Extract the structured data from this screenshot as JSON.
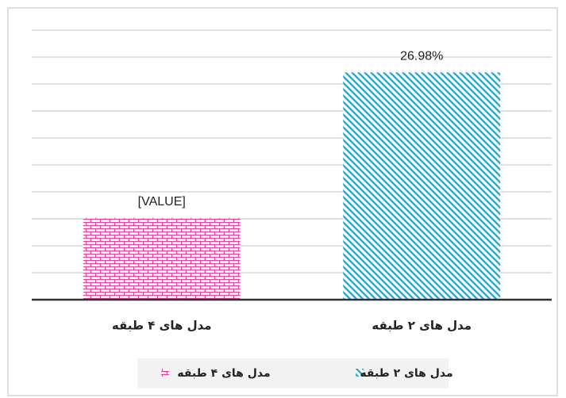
{
  "chart_data": {
    "type": "bar",
    "categories": [
      "مدل های ۴ طبقه",
      "مدل های ۲ طبقه"
    ],
    "values": [
      9.7,
      26.98
    ],
    "value_labels": [
      "[VALUE]",
      "26.98%"
    ],
    "colors": [
      "#e8409a",
      "#1aaee0"
    ],
    "patterns": [
      "brick",
      "diagonal"
    ],
    "ylim": [
      0,
      32
    ],
    "yticks": [
      0,
      3.2,
      6.4,
      9.6,
      12.8,
      16,
      19.2,
      22.4,
      25.6,
      28.8,
      32
    ],
    "grid": true,
    "legend": "bottom"
  }
}
